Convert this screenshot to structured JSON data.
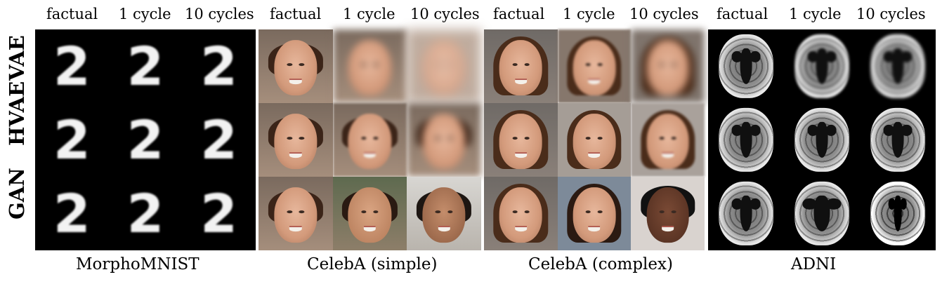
{
  "row_labels": [
    "VAE",
    "HVAE",
    "GAN"
  ],
  "column_headers": [
    "factual",
    "1 cycle",
    "10 cycles"
  ],
  "panels": [
    {
      "caption": "MorphoMNIST"
    },
    {
      "caption": "CelebA (simple)"
    },
    {
      "caption": "CelebA (complex)"
    },
    {
      "caption": "ADNI"
    }
  ]
}
